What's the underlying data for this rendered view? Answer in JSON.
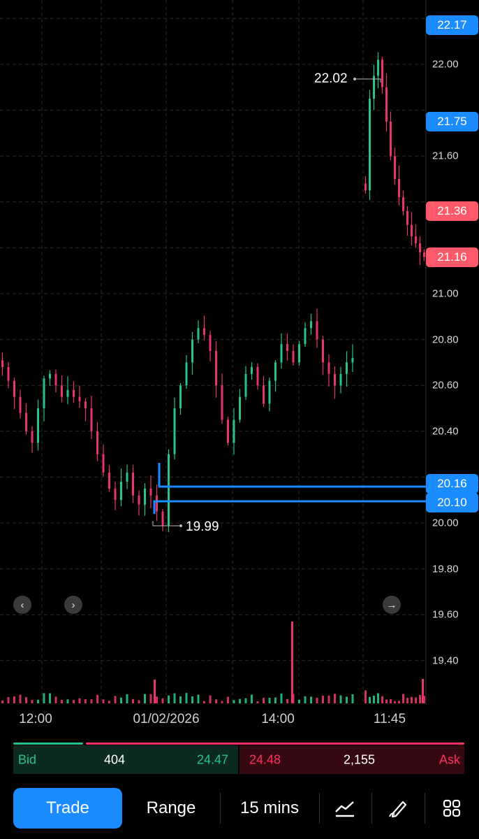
{
  "chart_data": {
    "type": "candlestick",
    "timeframe": "15 mins",
    "y_axis_ticks": [
      "19.40",
      "19.60",
      "19.80",
      "20.00",
      "20.40",
      "20.60",
      "20.80",
      "21.00",
      "21.60",
      "22.00"
    ],
    "x_axis_ticks": [
      "12:00",
      "01/02/2026",
      "14:00",
      "11:45"
    ],
    "price_tags": [
      {
        "value": "22.17",
        "color": "blue"
      },
      {
        "value": "21.75",
        "color": "blue"
      },
      {
        "value": "21.36",
        "color": "red"
      },
      {
        "value": "21.16",
        "color": "red"
      },
      {
        "value": "20.16",
        "color": "blue"
      },
      {
        "value": "20.10",
        "color": "blue"
      }
    ],
    "session_high": "22.02",
    "session_low": "19.99",
    "up_color": "#26c28f",
    "down_color": "#e8356b",
    "line_color": "#1a8cff",
    "close_path_day1": [
      20.68,
      20.62,
      20.55,
      20.48,
      20.4,
      20.35,
      20.5,
      20.63,
      20.65,
      20.6,
      20.55,
      20.58,
      20.55,
      20.53,
      20.5,
      20.4,
      20.3,
      20.22,
      20.15,
      20.1,
      20.18,
      20.22,
      20.12,
      20.08,
      20.15,
      20.12,
      20.05,
      19.99,
      20.3,
      20.5,
      20.6,
      20.7,
      20.8,
      20.85,
      20.82,
      20.75,
      20.6,
      20.45,
      20.35,
      20.45,
      20.55,
      20.65,
      20.68,
      20.6,
      20.52,
      20.62,
      20.7,
      20.78,
      20.75,
      20.7,
      20.78,
      20.85,
      20.88,
      20.8,
      20.7,
      20.65,
      20.6,
      20.65,
      20.7,
      20.72
    ],
    "close_path_day2": [
      21.45,
      21.85,
      21.95,
      22.02,
      21.9,
      21.75,
      21.6,
      21.5,
      21.42,
      21.36,
      21.3,
      21.25,
      21.22,
      21.18,
      21.16
    ]
  },
  "bid_ask": {
    "bid_label": "Bid",
    "bid_size": "404",
    "bid_price": "24.47",
    "ask_price": "24.48",
    "ask_size": "2,155",
    "ask_label": "Ask"
  },
  "toolbar": {
    "trade_label": "Trade",
    "range_label": "Range",
    "interval_label": "15 mins",
    "indicators_icon": "line-chart-icon",
    "draw_icon": "pen-icon",
    "grid_icon": "grid-icon"
  },
  "nav": {
    "left_icon": "chevron-left-icon",
    "right_icon": "chevron-right-icon",
    "latest_icon": "arrow-right-icon"
  }
}
